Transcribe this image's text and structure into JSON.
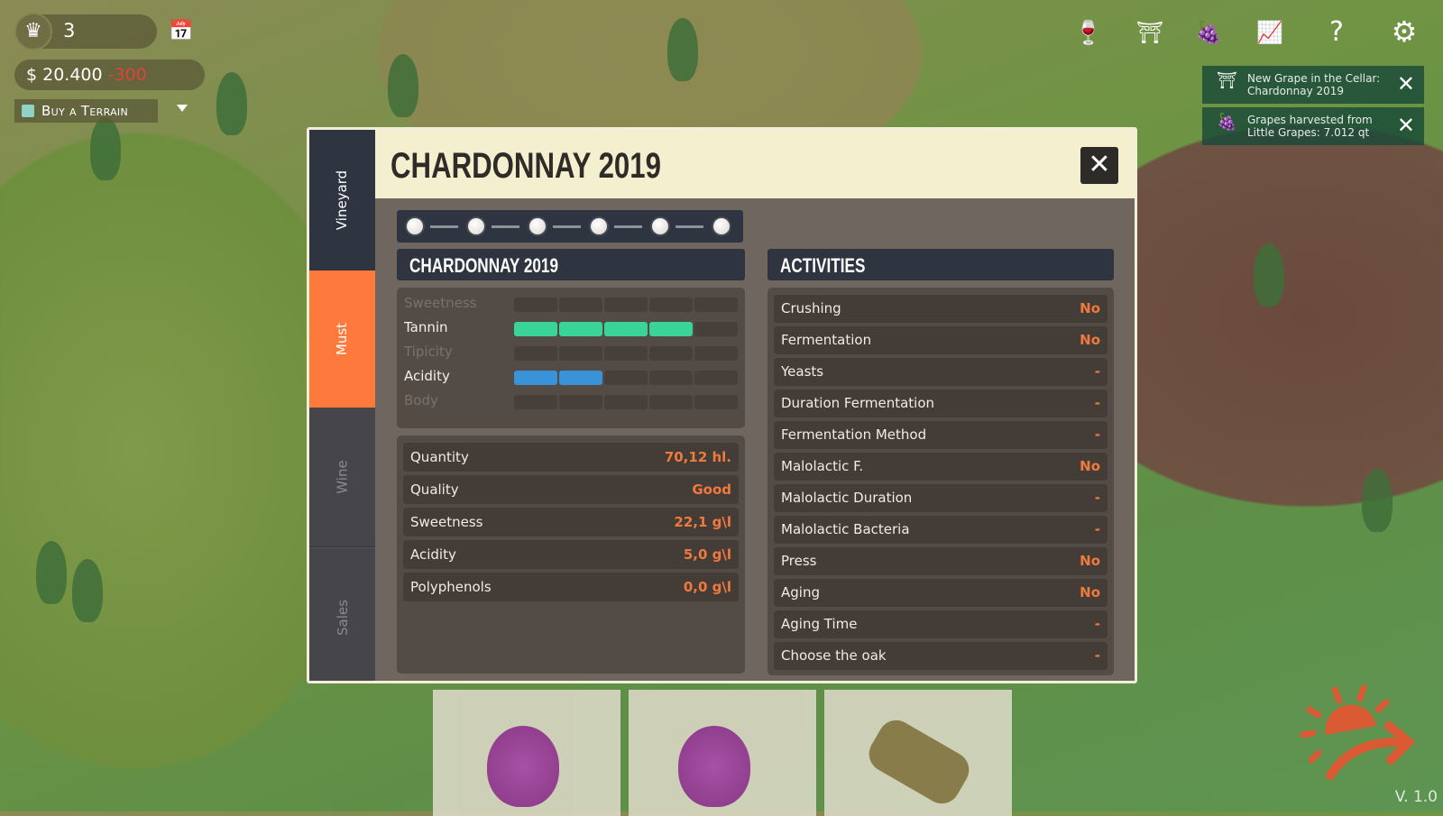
{
  "hud": {
    "level": "3",
    "money": "$ 20.400",
    "money_change": "-300",
    "buy_label": "Buy a Terrain",
    "crown_icon": "crown-icon",
    "calendar_icon": "calendar-icon"
  },
  "top_icons": [
    "wine-icon",
    "press-icon",
    "grapes-icon",
    "stats-icon",
    "help-icon",
    "settings-icon"
  ],
  "notifications": [
    {
      "icon": "press-icon",
      "text": "New Grape in the Cellar: Chardonnay 2019"
    },
    {
      "icon": "grapes-icon",
      "text": "Grapes harvested from Little Grapes: 7.012 qt"
    }
  ],
  "modal": {
    "title": "CHARDONNAY 2019",
    "tabs": [
      {
        "label": "Vineyard"
      },
      {
        "label": "Must"
      },
      {
        "label": "Wine"
      },
      {
        "label": "Sales"
      }
    ],
    "active_tab": "Must",
    "stepper_steps": 6,
    "left_header": "CHARDONNAY 2019",
    "attributes": [
      {
        "label": "Sweetness",
        "level": 0,
        "max": 5,
        "enabled": false
      },
      {
        "label": "Tannin",
        "level": 4,
        "max": 5,
        "enabled": true,
        "color": "#3ad39a"
      },
      {
        "label": "Tipicity",
        "level": 0,
        "max": 5,
        "enabled": false
      },
      {
        "label": "Acidity",
        "level": 2,
        "max": 5,
        "enabled": true,
        "color": "#3a93d8"
      },
      {
        "label": "Body",
        "level": 0,
        "max": 5,
        "enabled": false
      }
    ],
    "stats": [
      {
        "label": "Quantity",
        "value": "70,12 hl."
      },
      {
        "label": "Quality",
        "value": "Good"
      },
      {
        "label": "Sweetness",
        "value": "22,1 g\\l"
      },
      {
        "label": "Acidity",
        "value": "5,0 g\\l"
      },
      {
        "label": "Polyphenols",
        "value": "0,0 g\\l"
      }
    ],
    "activities_header": "ACTIVITIES",
    "activities": [
      {
        "label": "Crushing",
        "value": "No"
      },
      {
        "label": "Fermentation",
        "value": "No"
      },
      {
        "label": "Yeasts",
        "value": "-"
      },
      {
        "label": "Duration Fermentation",
        "value": "-"
      },
      {
        "label": "Fermentation Method",
        "value": "-"
      },
      {
        "label": "Malolactic F.",
        "value": "No"
      },
      {
        "label": "Malolactic Duration",
        "value": "-"
      },
      {
        "label": "Malolactic Bacteria",
        "value": "-"
      },
      {
        "label": "Press",
        "value": "No"
      },
      {
        "label": "Aging",
        "value": "No"
      },
      {
        "label": "Aging Time",
        "value": "-"
      },
      {
        "label": "Choose the oak",
        "value": "-"
      }
    ],
    "close_icon": "close-icon"
  },
  "version": "V. 1.0",
  "colors": {
    "accent": "#fe7a3c",
    "value": "#f07a3e",
    "tab_bg": "#2f3540",
    "header_bg": "#f4f0cf"
  }
}
